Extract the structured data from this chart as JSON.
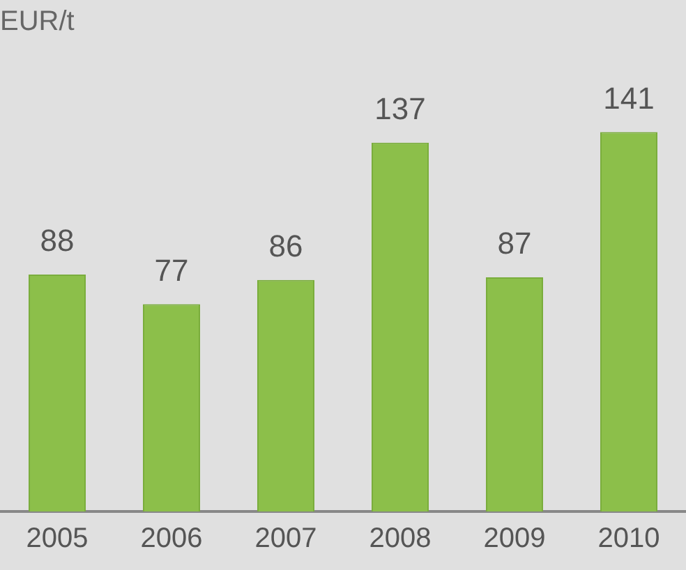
{
  "chart_data": {
    "type": "bar",
    "ylabel": "EUR/t",
    "categories": [
      "2005",
      "2006",
      "2007",
      "2008",
      "2009",
      "2010"
    ],
    "series": [
      {
        "color": "#8cbf4a",
        "values": [
          88,
          77,
          86,
          137,
          87,
          141
        ]
      }
    ],
    "data_labels": true,
    "grid": false,
    "legend": false
  }
}
